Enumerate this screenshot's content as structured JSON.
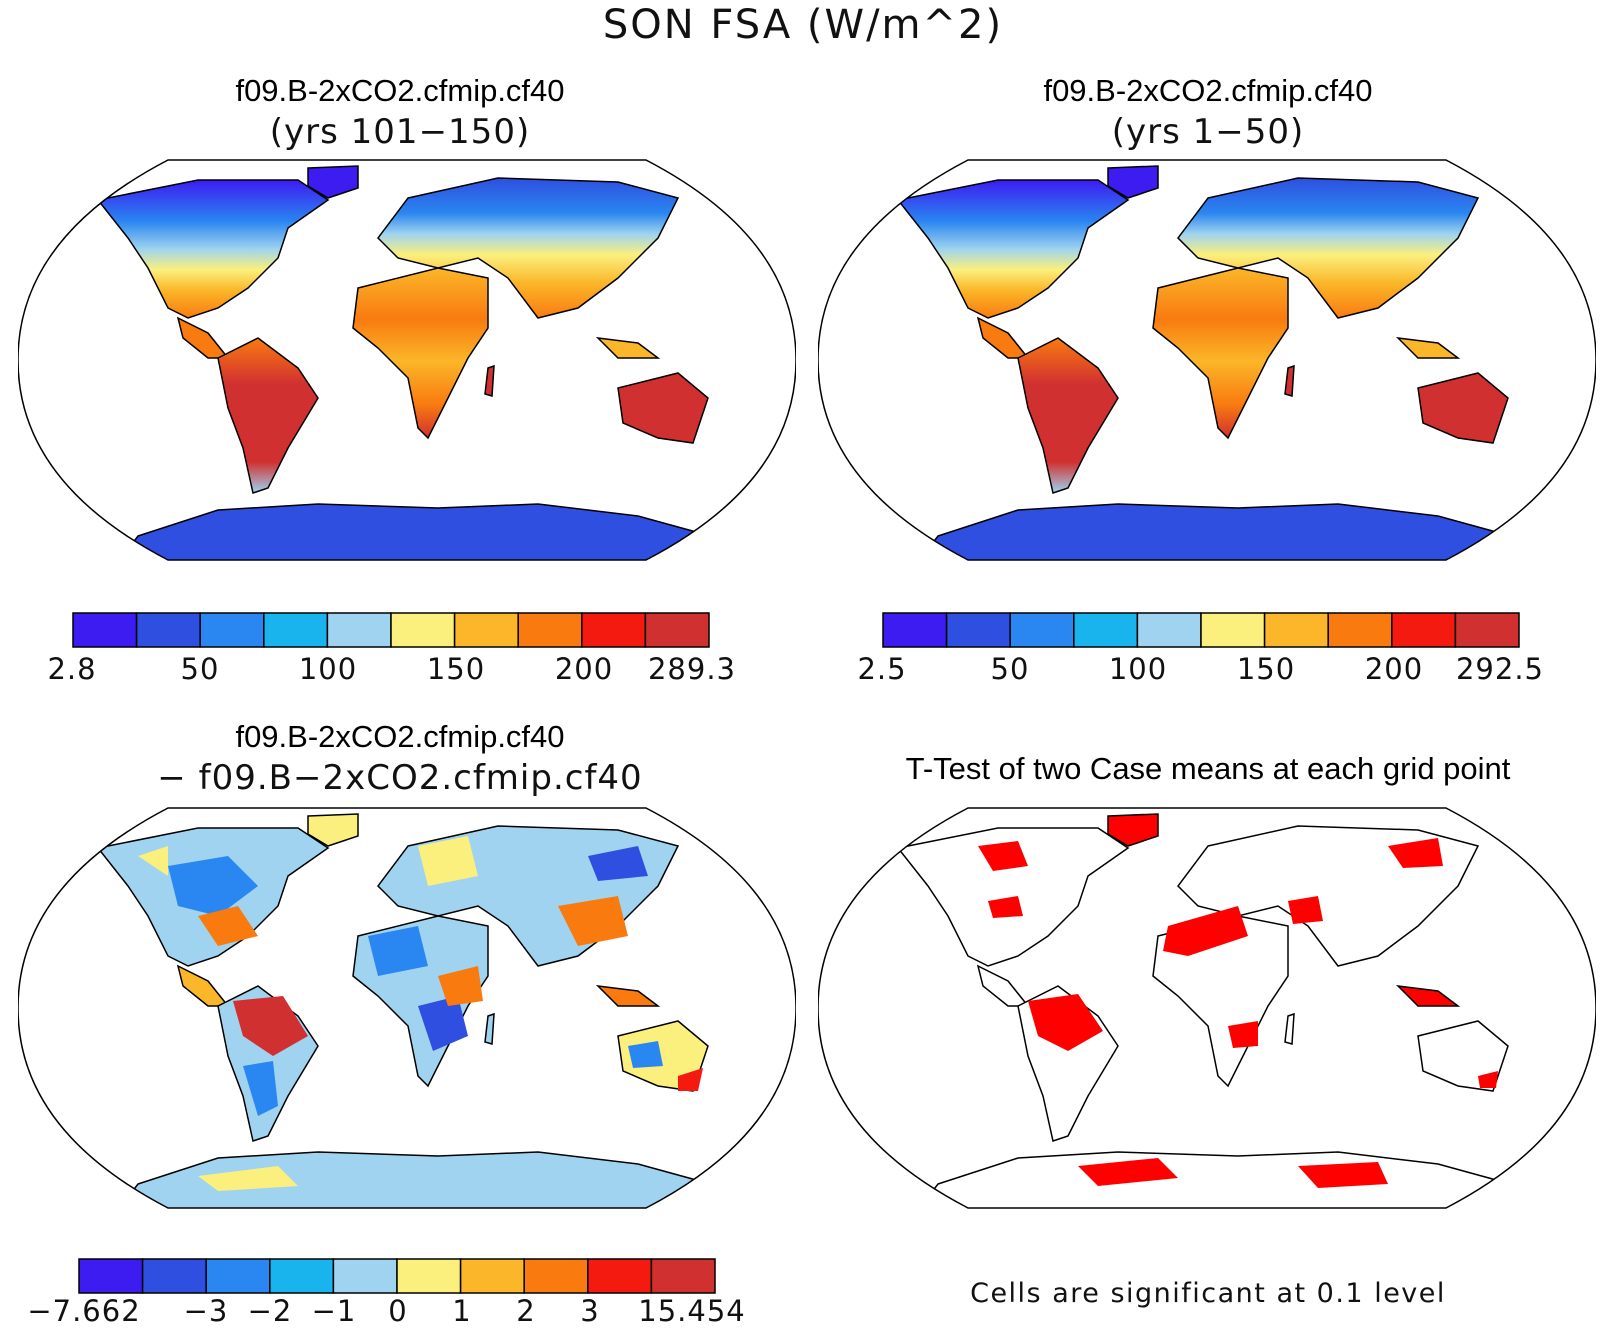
{
  "title": "SON FSA (W/m^2)",
  "panels": {
    "top_left": {
      "case": "f09.B-2xCO2.cfmip.cf40",
      "years": "(yrs 101−150)",
      "colorbar": {
        "colors": [
          "#3d1cf2",
          "#2f4fe0",
          "#2a86f0",
          "#19b4ee",
          "#9fd3f0",
          "#fbf07d",
          "#fbb629",
          "#f97b10",
          "#f51a10",
          "#d03030"
        ],
        "labels": [
          "2.8",
          "50",
          "100",
          "150",
          "200",
          "289.3"
        ]
      }
    },
    "top_right": {
      "case": "f09.B-2xCO2.cfmip.cf40",
      "years": "(yrs 1−50)",
      "colorbar": {
        "colors": [
          "#3d1cf2",
          "#2f4fe0",
          "#2a86f0",
          "#19b4ee",
          "#9fd3f0",
          "#fbf07d",
          "#fbb629",
          "#f97b10",
          "#f51a10",
          "#d03030"
        ],
        "labels": [
          "2.5",
          "50",
          "100",
          "150",
          "200",
          "292.5"
        ]
      }
    },
    "bottom_left": {
      "case": "f09.B-2xCO2.cfmip.cf40",
      "minus_case": "− f09.B−2xCO2.cfmip.cf40",
      "colorbar": {
        "colors": [
          "#3d1cf2",
          "#2f4fe0",
          "#2a86f0",
          "#19b4ee",
          "#9fd3f0",
          "#fbf07d",
          "#fbb629",
          "#f97b10",
          "#f51a10",
          "#d03030"
        ],
        "labels": [
          "−7.662",
          "−3",
          "−2",
          "−1",
          "0",
          "1",
          "2",
          "3",
          "15.454"
        ]
      }
    },
    "bottom_right": {
      "title": "T-Test of two Case means at each grid point",
      "note": "Cells are significant at 0.1 level",
      "significant_color": "#ff0000"
    }
  }
}
